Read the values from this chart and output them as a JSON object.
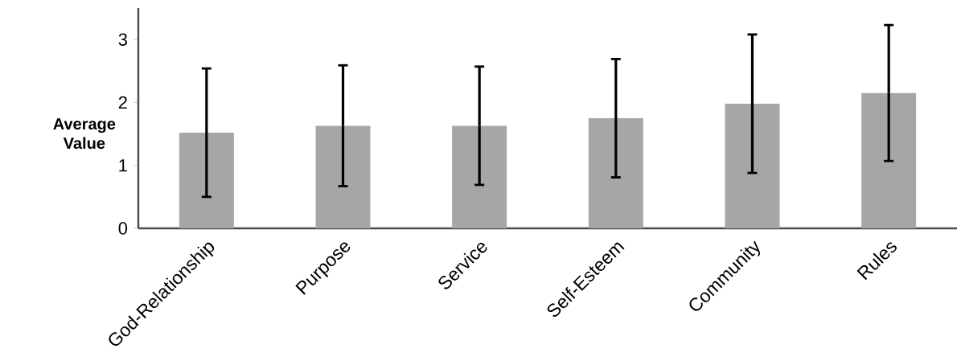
{
  "chart_data": {
    "type": "bar",
    "ylabel": "Average Value",
    "categories": [
      "God-Relationship",
      "Purpose",
      "Service",
      "Self-Esteem",
      "Community",
      "Rules"
    ],
    "values": [
      1.52,
      1.63,
      1.63,
      1.75,
      1.98,
      2.15
    ],
    "errors": [
      1.02,
      0.96,
      0.94,
      0.94,
      1.1,
      1.08
    ],
    "color": "#a6a6a6",
    "ylim": [
      0,
      3.5
    ],
    "yticks": [
      0,
      1,
      2,
      3
    ],
    "grid": false
  }
}
